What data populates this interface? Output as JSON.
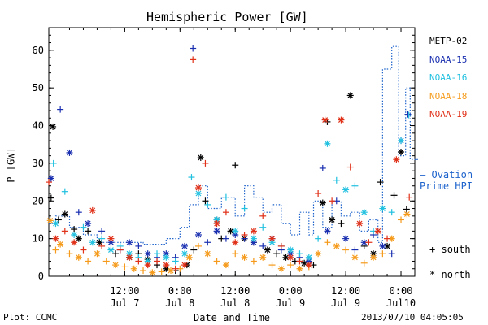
{
  "chart_data": {
    "type": "scatter",
    "title": "Hemispheric Power [GW]",
    "xlabel": "Date and Time",
    "ylabel": "P [GW]",
    "ylim": [
      0,
      66
    ],
    "xlim_hours": [
      -4.5,
      75
    ],
    "grid": false,
    "legend_position": "right",
    "y_ticks": [
      0,
      10,
      20,
      30,
      40,
      50,
      60
    ],
    "x_ticks": [
      {
        "hour": 12,
        "time": "12:00",
        "date": "Jul 7"
      },
      {
        "hour": 24,
        "time": "0:00",
        "date": "Jul 8"
      },
      {
        "hour": 36,
        "time": "12:00",
        "date": "Jul 8"
      },
      {
        "hour": 48,
        "time": "0:00",
        "date": "Jul 9"
      },
      {
        "hour": 60,
        "time": "12:00",
        "date": "Jul 9"
      },
      {
        "hour": 72,
        "time": "0:00",
        "date": "Jul10"
      }
    ],
    "series": [
      {
        "name": "METP-02",
        "color": "#000000",
        "points": [
          [
            -4,
            20.8
          ],
          [
            -3.6,
            39.7
          ],
          [
            -2.4,
            15
          ],
          [
            -1,
            16.5
          ],
          [
            1,
            12.5
          ],
          [
            2,
            10
          ],
          [
            4,
            12
          ],
          [
            6.5,
            9
          ],
          [
            10,
            6
          ],
          [
            13,
            5
          ],
          [
            15,
            6
          ],
          [
            17,
            4.5
          ],
          [
            19,
            3
          ],
          [
            21,
            2
          ],
          [
            23,
            1.5
          ],
          [
            25.5,
            3
          ],
          [
            27,
            7
          ],
          [
            28.5,
            31.5
          ],
          [
            29.5,
            20
          ],
          [
            32,
            15
          ],
          [
            33,
            10
          ],
          [
            35,
            12
          ],
          [
            36,
            29.5
          ],
          [
            38,
            10
          ],
          [
            40,
            9
          ],
          [
            43,
            7
          ],
          [
            45,
            6
          ],
          [
            47,
            5
          ],
          [
            49,
            4
          ],
          [
            51,
            3.5
          ],
          [
            53,
            3
          ],
          [
            55,
            19.5
          ],
          [
            56,
            41
          ],
          [
            57,
            15
          ],
          [
            59,
            14
          ],
          [
            61,
            48
          ],
          [
            64,
            8
          ],
          [
            66,
            6
          ],
          [
            67.5,
            25
          ],
          [
            69,
            8
          ],
          [
            70.5,
            21.5
          ],
          [
            72,
            33
          ],
          [
            73.2,
            17.8
          ]
        ]
      },
      {
        "name": "NOAA-15",
        "color": "#1a2fb0",
        "points": [
          [
            -4,
            26
          ],
          [
            -2,
            44.3
          ],
          [
            0,
            32.8
          ],
          [
            2,
            17
          ],
          [
            4,
            14
          ],
          [
            7,
            12
          ],
          [
            9,
            9
          ],
          [
            11,
            7
          ],
          [
            13,
            9
          ],
          [
            15,
            8
          ],
          [
            17,
            6
          ],
          [
            19,
            5
          ],
          [
            21,
            6
          ],
          [
            23,
            5
          ],
          [
            25,
            8
          ],
          [
            26.8,
            60.5
          ],
          [
            28,
            11
          ],
          [
            30,
            9
          ],
          [
            32,
            12
          ],
          [
            34,
            10
          ],
          [
            36,
            11
          ],
          [
            38,
            10
          ],
          [
            40,
            9
          ],
          [
            42,
            8
          ],
          [
            44,
            10
          ],
          [
            46,
            7
          ],
          [
            48,
            6
          ],
          [
            50,
            5
          ],
          [
            52,
            4
          ],
          [
            55,
            28.7
          ],
          [
            56,
            12
          ],
          [
            58,
            20
          ],
          [
            60,
            10
          ],
          [
            62,
            7
          ],
          [
            64,
            9
          ],
          [
            66,
            11
          ],
          [
            68,
            8
          ],
          [
            70,
            6
          ],
          [
            72,
            36
          ],
          [
            73.5,
            43
          ]
        ]
      },
      {
        "name": "NOAA-16",
        "color": "#22c1e0",
        "points": [
          [
            -3.5,
            30
          ],
          [
            -3,
            14
          ],
          [
            -1,
            22.5
          ],
          [
            1,
            11
          ],
          [
            3,
            13
          ],
          [
            5,
            9
          ],
          [
            7,
            10
          ],
          [
            9,
            7
          ],
          [
            11,
            8
          ],
          [
            13,
            6
          ],
          [
            15,
            5
          ],
          [
            17,
            4
          ],
          [
            19,
            6
          ],
          [
            21,
            5
          ],
          [
            23,
            4
          ],
          [
            25,
            6
          ],
          [
            26.5,
            26.3
          ],
          [
            28,
            22
          ],
          [
            30,
            19
          ],
          [
            32,
            15
          ],
          [
            34,
            21
          ],
          [
            36,
            12
          ],
          [
            38,
            18
          ],
          [
            40,
            10
          ],
          [
            42,
            13
          ],
          [
            44,
            9
          ],
          [
            46,
            8
          ],
          [
            48,
            7
          ],
          [
            50,
            6
          ],
          [
            52,
            5
          ],
          [
            54,
            10
          ],
          [
            56,
            35.2
          ],
          [
            58,
            25.5
          ],
          [
            60,
            23
          ],
          [
            62,
            24
          ],
          [
            64,
            17
          ],
          [
            66,
            12
          ],
          [
            68,
            18
          ],
          [
            70,
            17
          ],
          [
            72,
            36
          ],
          [
            73.7,
            42.8
          ]
        ]
      },
      {
        "name": "NOAA-18",
        "color": "#f59a1a",
        "points": [
          [
            -4.2,
            14.8
          ],
          [
            -3,
            7
          ],
          [
            -2,
            8.5
          ],
          [
            0,
            6
          ],
          [
            2,
            5
          ],
          [
            4,
            4
          ],
          [
            6,
            6
          ],
          [
            8,
            4
          ],
          [
            10,
            3
          ],
          [
            12,
            2.5
          ],
          [
            14,
            2
          ],
          [
            16,
            1.5
          ],
          [
            18,
            1
          ],
          [
            20,
            1.2
          ],
          [
            22,
            1.5
          ],
          [
            24,
            2
          ],
          [
            26,
            5
          ],
          [
            28,
            8
          ],
          [
            30,
            6
          ],
          [
            32,
            4
          ],
          [
            34,
            3
          ],
          [
            36,
            6
          ],
          [
            38,
            5
          ],
          [
            40,
            4
          ],
          [
            42,
            5
          ],
          [
            44,
            3
          ],
          [
            46,
            2
          ],
          [
            48,
            3
          ],
          [
            50,
            2
          ],
          [
            52,
            2.5
          ],
          [
            54,
            6
          ],
          [
            56,
            9
          ],
          [
            58,
            8
          ],
          [
            60,
            7
          ],
          [
            62,
            5
          ],
          [
            64,
            3.5
          ],
          [
            66,
            5
          ],
          [
            68,
            6
          ],
          [
            70,
            10
          ],
          [
            72,
            15
          ],
          [
            73.3,
            16.5
          ]
        ]
      },
      {
        "name": "NOAA-19",
        "color": "#e03018",
        "points": [
          [
            -4.5,
            25
          ],
          [
            -3,
            10
          ],
          [
            -1,
            12
          ],
          [
            1,
            9
          ],
          [
            3,
            7
          ],
          [
            5,
            17.5
          ],
          [
            7,
            8
          ],
          [
            9,
            10
          ],
          [
            11,
            7
          ],
          [
            13,
            5
          ],
          [
            15,
            4
          ],
          [
            17,
            3
          ],
          [
            19,
            4
          ],
          [
            21,
            3
          ],
          [
            23,
            2
          ],
          [
            25,
            3
          ],
          [
            26.8,
            57.5
          ],
          [
            28,
            23.5
          ],
          [
            29.5,
            30
          ],
          [
            32,
            14
          ],
          [
            34,
            17
          ],
          [
            36,
            9
          ],
          [
            38,
            11
          ],
          [
            40,
            12
          ],
          [
            42,
            16
          ],
          [
            44,
            10
          ],
          [
            46,
            8
          ],
          [
            48,
            5
          ],
          [
            50,
            4
          ],
          [
            52,
            3
          ],
          [
            54,
            22
          ],
          [
            55.5,
            41.5
          ],
          [
            57,
            20
          ],
          [
            59,
            41.5
          ],
          [
            61,
            29
          ],
          [
            63,
            14
          ],
          [
            65,
            9
          ],
          [
            67,
            12
          ],
          [
            69,
            10
          ],
          [
            71,
            31
          ],
          [
            73.8,
            21
          ]
        ]
      }
    ],
    "ovation": {
      "name": "Ovation Prime HPI",
      "color": "#1e63cc",
      "points": [
        [
          -4.5,
          14
        ],
        [
          -3,
          14
        ],
        [
          -3,
          16
        ],
        [
          0,
          16
        ],
        [
          0,
          13
        ],
        [
          3,
          13
        ],
        [
          3,
          11
        ],
        [
          6,
          11
        ],
        [
          6,
          9
        ],
        [
          10,
          9
        ],
        [
          10,
          9
        ],
        [
          16,
          9
        ],
        [
          16,
          8.5
        ],
        [
          21,
          8.5
        ],
        [
          21,
          10
        ],
        [
          24,
          10
        ],
        [
          24,
          13
        ],
        [
          26,
          13
        ],
        [
          26,
          19
        ],
        [
          28,
          19
        ],
        [
          28,
          24
        ],
        [
          30,
          24
        ],
        [
          30,
          18
        ],
        [
          33,
          18
        ],
        [
          33,
          21
        ],
        [
          36,
          21
        ],
        [
          36,
          16
        ],
        [
          38,
          16
        ],
        [
          38,
          24
        ],
        [
          40,
          24
        ],
        [
          40,
          21
        ],
        [
          42,
          21
        ],
        [
          42,
          17
        ],
        [
          44,
          17
        ],
        [
          44,
          19
        ],
        [
          46,
          19
        ],
        [
          46,
          14
        ],
        [
          48,
          14
        ],
        [
          48,
          11
        ],
        [
          50,
          11
        ],
        [
          50,
          17
        ],
        [
          52,
          17
        ],
        [
          52,
          11
        ],
        [
          53,
          11
        ],
        [
          53,
          20
        ],
        [
          55,
          20
        ],
        [
          55,
          13
        ],
        [
          57,
          13
        ],
        [
          57,
          20
        ],
        [
          59,
          20
        ],
        [
          59,
          16
        ],
        [
          61,
          16
        ],
        [
          61,
          17
        ],
        [
          63,
          17
        ],
        [
          63,
          12
        ],
        [
          65,
          12
        ],
        [
          65,
          15
        ],
        [
          67,
          15
        ],
        [
          67,
          9
        ],
        [
          68,
          9
        ],
        [
          68,
          55
        ],
        [
          70,
          55
        ],
        [
          70,
          61
        ],
        [
          71.5,
          61
        ],
        [
          71.5,
          32
        ],
        [
          73,
          32
        ],
        [
          73,
          50
        ],
        [
          74,
          50
        ],
        [
          74,
          31
        ],
        [
          75,
          31
        ]
      ]
    },
    "marker_key": [
      {
        "symbol": "+",
        "meaning": "south"
      },
      {
        "symbol": "*",
        "meaning": "north"
      }
    ]
  },
  "footer": {
    "left": "Plot: CCMC",
    "right": "2013/07/10 04:05:05"
  }
}
